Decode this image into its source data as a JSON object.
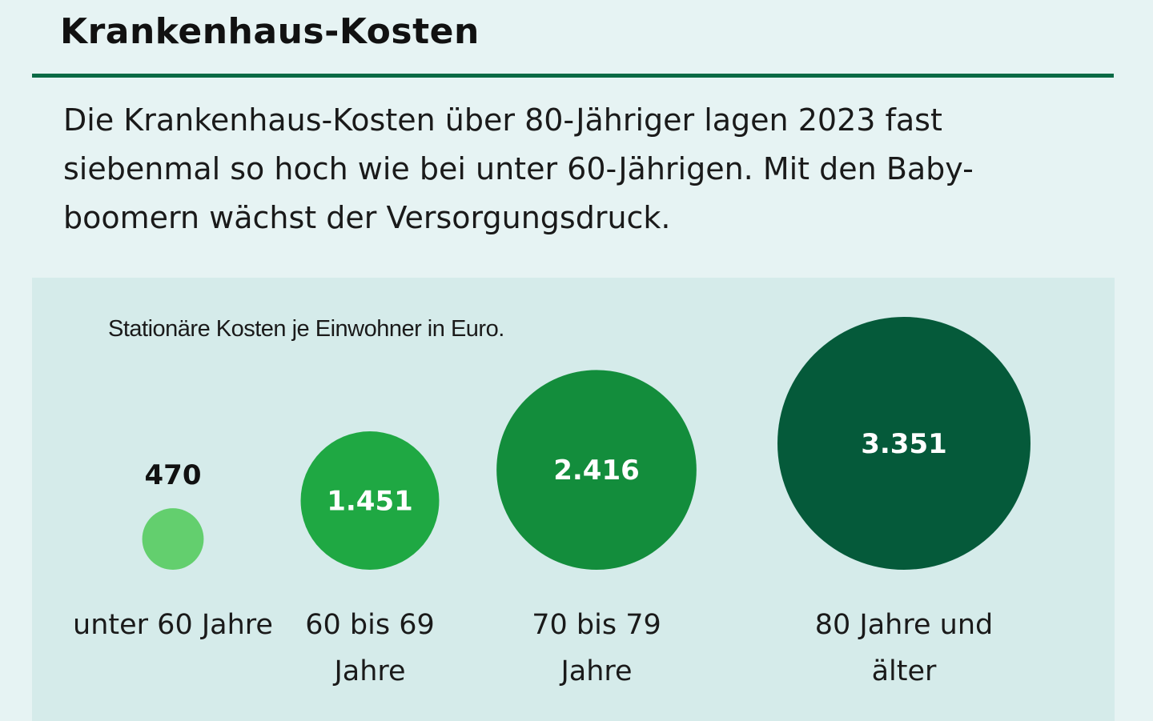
{
  "header": {
    "title": "Krankenhaus-Kosten",
    "subtitle": "Die Krankenhaus-Kosten über 80-Jähriger lagen 2023 fast siebenmal so hoch wie bei unter 60-Jährigen. Mit den Baby-boomern wächst der Versorgungsdruck."
  },
  "colors": {
    "background": "#e6f3f3",
    "panel": "#d5ebea",
    "rule": "#0a6a45"
  },
  "chart_data": {
    "type": "bubble",
    "note": "Stationäre Kosten je Einwohner in Euro.",
    "categories": [
      {
        "label": "unter 60 Jahre",
        "value": 470,
        "value_text": "470",
        "color": "#63cf6e"
      },
      {
        "label": "60 bis 69 Jahre",
        "value": 1451,
        "value_text": "1.451",
        "color": "#1fa843"
      },
      {
        "label": "70 bis 79 Jahre",
        "value": 2416,
        "value_text": "2.416",
        "color": "#138d3c"
      },
      {
        "label": "80 Jahre und älter",
        "value": 3351,
        "value_text": "3.351",
        "color": "#055a3a"
      }
    ]
  }
}
